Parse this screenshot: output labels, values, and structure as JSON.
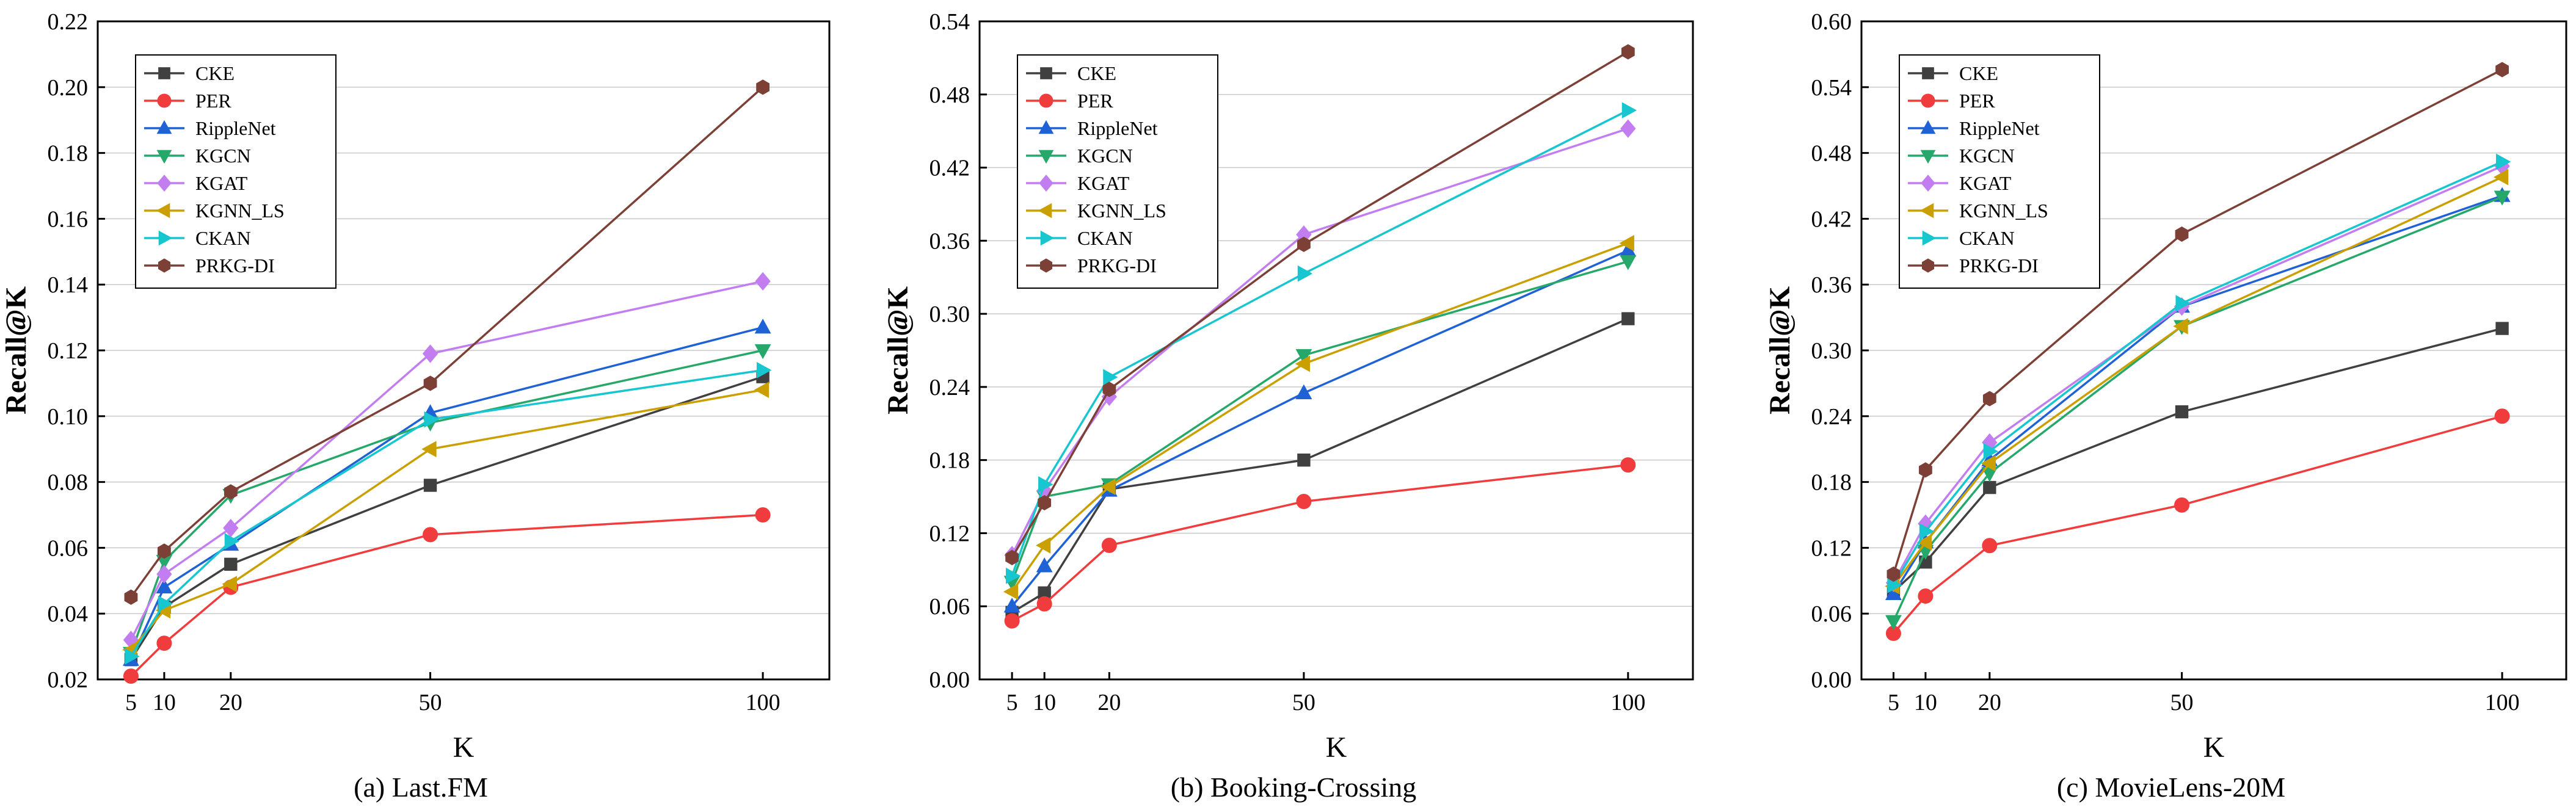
{
  "chart_data": [
    {
      "type": "line",
      "caption": "(a) Last.FM",
      "xlabel": "K",
      "ylabel": "Recall@K",
      "x": [
        5,
        10,
        20,
        50,
        100
      ],
      "xlim": [
        0,
        110
      ],
      "ylim": [
        0.02,
        0.22
      ],
      "yticks": [
        "0.02",
        "0.04",
        "0.06",
        "0.08",
        "0.10",
        "0.12",
        "0.14",
        "0.16",
        "0.18",
        "0.20",
        "0.22"
      ],
      "grid": true,
      "legend_position": "top-left",
      "series": [
        {
          "name": "CKE",
          "values": [
            0.026,
            0.042,
            0.055,
            0.079,
            0.112
          ]
        },
        {
          "name": "PER",
          "values": [
            0.021,
            0.031,
            0.048,
            0.064,
            0.07
          ]
        },
        {
          "name": "RippleNet",
          "values": [
            0.026,
            0.048,
            0.061,
            0.101,
            0.127
          ]
        },
        {
          "name": "KGCN",
          "values": [
            0.028,
            0.056,
            0.076,
            0.098,
            0.12
          ]
        },
        {
          "name": "KGAT",
          "values": [
            0.032,
            0.052,
            0.066,
            0.119,
            0.141
          ]
        },
        {
          "name": "KGNN_LS",
          "values": [
            0.029,
            0.041,
            0.049,
            0.09,
            0.108
          ]
        },
        {
          "name": "CKAN",
          "values": [
            0.027,
            0.043,
            0.062,
            0.099,
            0.114
          ]
        },
        {
          "name": "PRKG-DI",
          "values": [
            0.045,
            0.059,
            0.077,
            0.11,
            0.2
          ]
        }
      ]
    },
    {
      "type": "line",
      "caption": "(b) Booking-Crossing",
      "xlabel": "K",
      "ylabel": "Recall@K",
      "x": [
        5,
        10,
        20,
        50,
        100
      ],
      "xlim": [
        0,
        110
      ],
      "ylim": [
        0.0,
        0.54
      ],
      "yticks": [
        "0.00",
        "0.06",
        "0.12",
        "0.18",
        "0.24",
        "0.30",
        "0.36",
        "0.42",
        "0.48",
        "0.54"
      ],
      "grid": true,
      "legend_position": "top-left",
      "series": [
        {
          "name": "CKE",
          "values": [
            0.055,
            0.071,
            0.156,
            0.18,
            0.296
          ]
        },
        {
          "name": "PER",
          "values": [
            0.048,
            0.062,
            0.11,
            0.146,
            0.176
          ]
        },
        {
          "name": "RippleNet",
          "values": [
            0.06,
            0.093,
            0.155,
            0.235,
            0.352
          ]
        },
        {
          "name": "KGCN",
          "values": [
            0.08,
            0.15,
            0.16,
            0.266,
            0.343
          ]
        },
        {
          "name": "KGAT",
          "values": [
            0.102,
            0.155,
            0.232,
            0.365,
            0.452
          ]
        },
        {
          "name": "KGNN_LS",
          "values": [
            0.072,
            0.11,
            0.158,
            0.259,
            0.358
          ]
        },
        {
          "name": "CKAN",
          "values": [
            0.085,
            0.16,
            0.248,
            0.333,
            0.467
          ]
        },
        {
          "name": "PRKG-DI",
          "values": [
            0.1,
            0.145,
            0.238,
            0.357,
            0.515
          ]
        }
      ]
    },
    {
      "type": "line",
      "caption": "(c) MovieLens-20M",
      "xlabel": "K",
      "ylabel": "Recall@K",
      "x": [
        5,
        10,
        20,
        50,
        100
      ],
      "xlim": [
        0,
        110
      ],
      "ylim": [
        0.0,
        0.6
      ],
      "yticks": [
        "0.00",
        "0.06",
        "0.12",
        "0.18",
        "0.24",
        "0.30",
        "0.36",
        "0.42",
        "0.48",
        "0.54",
        "0.60"
      ],
      "grid": true,
      "legend_position": "top-left",
      "series": [
        {
          "name": "CKE",
          "values": [
            0.08,
            0.107,
            0.175,
            0.244,
            0.32
          ]
        },
        {
          "name": "PER",
          "values": [
            0.042,
            0.076,
            0.122,
            0.159,
            0.24
          ]
        },
        {
          "name": "RippleNet",
          "values": [
            0.078,
            0.125,
            0.2,
            0.34,
            0.441
          ]
        },
        {
          "name": "KGCN",
          "values": [
            0.053,
            0.117,
            0.188,
            0.322,
            0.44
          ]
        },
        {
          "name": "KGAT",
          "values": [
            0.088,
            0.142,
            0.216,
            0.34,
            0.468
          ]
        },
        {
          "name": "KGNN_LS",
          "values": [
            0.085,
            0.125,
            0.197,
            0.322,
            0.458
          ]
        },
        {
          "name": "CKAN",
          "values": [
            0.086,
            0.135,
            0.208,
            0.343,
            0.472
          ]
        },
        {
          "name": "PRKG-DI",
          "values": [
            0.096,
            0.191,
            0.256,
            0.406,
            0.556
          ]
        }
      ]
    }
  ],
  "series_styles": [
    {
      "color": "#404040",
      "marker": "square"
    },
    {
      "color": "#f03c3c",
      "marker": "circle"
    },
    {
      "color": "#1f62d6",
      "marker": "triangle-up"
    },
    {
      "color": "#26a86b",
      "marker": "triangle-down"
    },
    {
      "color": "#c27ef0",
      "marker": "diamond"
    },
    {
      "color": "#c9a000",
      "marker": "triangle-left"
    },
    {
      "color": "#17c6cf",
      "marker": "triangle-right"
    },
    {
      "color": "#7d4036",
      "marker": "hexagon"
    }
  ]
}
